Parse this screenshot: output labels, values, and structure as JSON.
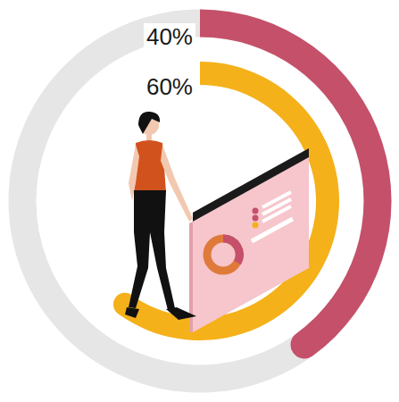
{
  "chart_data": {
    "type": "radial_bar",
    "values": [
      40,
      60
    ],
    "value_labels": [
      "40%",
      "60%"
    ],
    "colors": [
      "#c5506a",
      "#f5b11a"
    ],
    "ylim": [
      0,
      100
    ],
    "data_labels": true
  }
}
